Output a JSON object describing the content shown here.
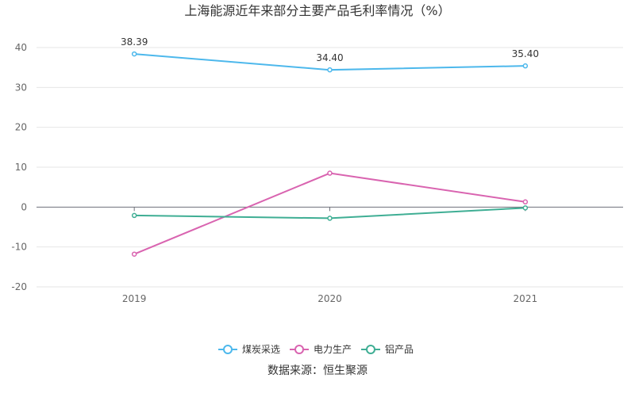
{
  "chart_data": {
    "type": "line",
    "title": "上海能源近年来部分主要产品毛利率情况（%）",
    "categories": [
      "2019",
      "2020",
      "2021"
    ],
    "ylim": [
      -20,
      40
    ],
    "yticks": [
      40,
      30,
      20,
      10,
      0,
      -10,
      -20
    ],
    "grid": true,
    "legend_position": "bottom",
    "series": [
      {
        "name": "煤炭采选",
        "values": [
          38.39,
          34.4,
          35.4
        ],
        "value_labels": [
          "38.39",
          "34.40",
          "35.40"
        ],
        "color": "#4db8ec"
      },
      {
        "name": "电力生产",
        "values": [
          -11.8,
          8.5,
          1.3
        ],
        "color": "#d964b0"
      },
      {
        "name": "铝产品",
        "values": [
          -2.1,
          -2.8,
          -0.2
        ],
        "color": "#3fae94"
      }
    ],
    "source": "数据来源：恒生聚源"
  }
}
